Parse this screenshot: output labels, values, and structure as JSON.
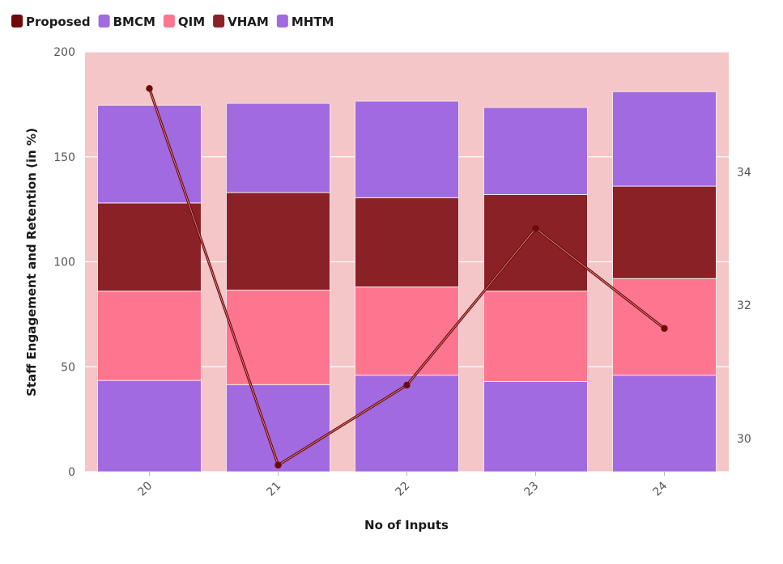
{
  "chart_data": {
    "type": "bar",
    "stacked": true,
    "categories": [
      "20",
      "21",
      "22",
      "23",
      "24"
    ],
    "xlabel": "No of Inputs",
    "ylabel": "Staff Engagement and Retention (in %)",
    "ylim": [
      0,
      200
    ],
    "y_ticks": [
      0,
      50,
      100,
      150,
      200
    ],
    "y2lim": [
      29.5,
      35.8
    ],
    "y2_ticks": [
      30,
      32,
      34
    ],
    "grid": true,
    "legend_position": "top-left",
    "plot_background": "#f5c6c7",
    "series": [
      {
        "name": "BMCM",
        "kind": "bar",
        "color": "#a26ae0",
        "values": [
          43.5,
          41.5,
          46,
          43,
          46
        ]
      },
      {
        "name": "QIM",
        "kind": "bar",
        "color": "#fe7590",
        "values": [
          42.5,
          45,
          42,
          43,
          46
        ]
      },
      {
        "name": "VHAM",
        "kind": "bar",
        "color": "#8a2126",
        "values": [
          42,
          46.5,
          42.5,
          46,
          44
        ]
      },
      {
        "name": "MHTM",
        "kind": "bar",
        "color": "#a26ae0",
        "values": [
          46.5,
          42.5,
          46,
          41.5,
          45
        ]
      },
      {
        "name": "Proposed",
        "kind": "line",
        "axis": "right",
        "color": "#6e0a0a",
        "values": [
          35.25,
          29.6,
          30.8,
          33.15,
          31.65
        ]
      }
    ],
    "legend": [
      {
        "name": "Proposed",
        "color": "#6e0a0a"
      },
      {
        "name": "BMCM",
        "color": "#a26ae0"
      },
      {
        "name": "QIM",
        "color": "#fe7590"
      },
      {
        "name": "VHAM",
        "color": "#8a2126"
      },
      {
        "name": "MHTM",
        "color": "#a26ae0"
      }
    ]
  }
}
